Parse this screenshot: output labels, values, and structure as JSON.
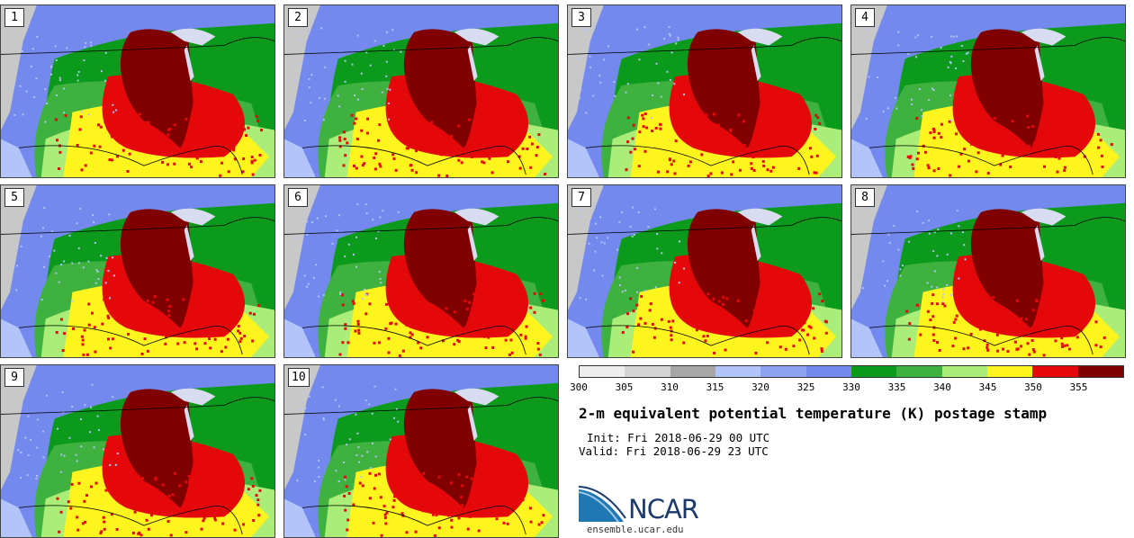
{
  "panels": [
    {
      "number": "1"
    },
    {
      "number": "2"
    },
    {
      "number": "3"
    },
    {
      "number": "4"
    },
    {
      "number": "5"
    },
    {
      "number": "6"
    },
    {
      "number": "7"
    },
    {
      "number": "8"
    },
    {
      "number": "9"
    },
    {
      "number": "10"
    }
  ],
  "colorbar": {
    "bins": [
      "#eeeeee",
      "#d4d4d4",
      "#a6a6a6",
      "#b2c4fa",
      "#8ea2f4",
      "#7489ee",
      "#0c9a1c",
      "#3fb13f",
      "#aaed78",
      "#fff51e",
      "#e5080a",
      "#800000"
    ],
    "ticks": [
      "300",
      "305",
      "310",
      "315",
      "320",
      "325",
      "330",
      "335",
      "340",
      "345",
      "350",
      "355"
    ]
  },
  "title": "2-m equivalent potential temperature (K) postage stamp",
  "init": "Init: Fri 2018-06-29 00 UTC",
  "valid": "Valid: Fri 2018-06-29 23 UTC",
  "logo": {
    "name": "NCAR",
    "url": "ensemble.ucar.edu"
  },
  "colors": {
    "ocean": "#c8c8c8",
    "lake": "#d8dcf0",
    "border": "#000000"
  }
}
